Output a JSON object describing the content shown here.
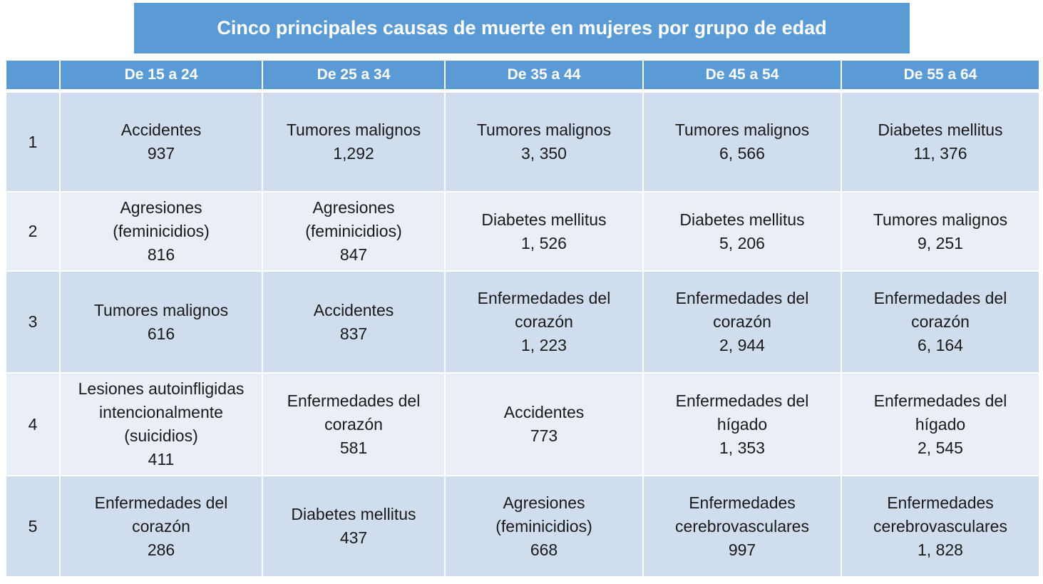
{
  "title": "Cinco principales causas de muerte en mujeres por grupo de edad",
  "colors": {
    "header_bg": "#5b9bd5",
    "row_dark": "#cfddee",
    "row_light": "#e9eef7",
    "header_text": "#ffffff"
  },
  "columns": [
    "",
    "De 15 a 24",
    "De 25 a 34",
    "De 35 a 44",
    "De 45 a 54",
    "De 55 a 64"
  ],
  "rows": [
    {
      "rank": "1",
      "cells": [
        {
          "label": "Accidentes",
          "value": "937"
        },
        {
          "label": "Tumores malignos",
          "value": "1,292"
        },
        {
          "label": "Tumores malignos",
          "value": "3, 350"
        },
        {
          "label": "Tumores malignos",
          "value": "6, 566"
        },
        {
          "label": "Diabetes mellitus",
          "value": "11, 376"
        }
      ]
    },
    {
      "rank": "2",
      "cells": [
        {
          "label": "Agresiones\n(feminicidios)",
          "value": "816"
        },
        {
          "label": "Agresiones\n(feminicidios)",
          "value": "847"
        },
        {
          "label": "Diabetes mellitus",
          "value": "1, 526"
        },
        {
          "label": "Diabetes mellitus",
          "value": "5, 206"
        },
        {
          "label": "Tumores malignos",
          "value": "9, 251"
        }
      ]
    },
    {
      "rank": "3",
      "cells": [
        {
          "label": "Tumores malignos",
          "value": "616"
        },
        {
          "label": "Accidentes",
          "value": "837"
        },
        {
          "label": "Enfermedades del\ncorazón",
          "value": "1, 223"
        },
        {
          "label": "Enfermedades del\ncorazón",
          "value": "2, 944"
        },
        {
          "label": "Enfermedades del\ncorazón",
          "value": "6, 164"
        }
      ]
    },
    {
      "rank": "4",
      "cells": [
        {
          "label": "Lesiones autoinfligidas\nintencionalmente\n(suicidios)",
          "value": "411"
        },
        {
          "label": "Enfermedades del\ncorazón",
          "value": "581"
        },
        {
          "label": "Accidentes",
          "value": "773"
        },
        {
          "label": "Enfermedades del\nhígado",
          "value": "1, 353"
        },
        {
          "label": "Enfermedades del\nhígado",
          "value": "2, 545"
        }
      ]
    },
    {
      "rank": "5",
      "cells": [
        {
          "label": "Enfermedades del\ncorazón",
          "value": "286"
        },
        {
          "label": "Diabetes mellitus",
          "value": "437"
        },
        {
          "label": "Agresiones\n(feminicidios)",
          "value": "668"
        },
        {
          "label": "Enfermedades\ncerebrovasculares",
          "value": "997"
        },
        {
          "label": "Enfermedades\ncerebrovasculares",
          "value": "1, 828"
        }
      ]
    }
  ]
}
